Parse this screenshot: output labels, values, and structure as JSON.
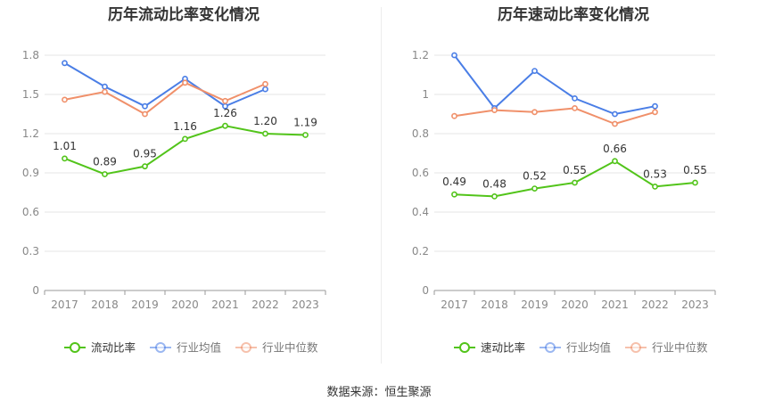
{
  "source_label": "数据来源：恒生聚源",
  "colors": {
    "company": "#52c41a",
    "avg": "#4a7ee6",
    "median": "#f0906a",
    "grid": "#e6e6e6",
    "axis": "#999999",
    "tick": "#888888"
  },
  "chart_data": [
    {
      "type": "line",
      "title": "历年流动比率变化情况",
      "categories": [
        "2017",
        "2018",
        "2019",
        "2020",
        "2021",
        "2022",
        "2023"
      ],
      "yticks": [
        "0",
        "0.3",
        "0.6",
        "0.9",
        "1.2",
        "1.5",
        "1.8"
      ],
      "ylim": [
        0,
        1.95
      ],
      "series": [
        {
          "name": "流动比率",
          "key": "company",
          "values": [
            1.01,
            0.89,
            0.95,
            1.16,
            1.26,
            1.2,
            1.19
          ],
          "labels": [
            "1.01",
            "0.89",
            "0.95",
            "1.16",
            "1.26",
            "1.20",
            "1.19"
          ]
        },
        {
          "name": "行业均值",
          "key": "avg",
          "values": [
            1.74,
            1.56,
            1.41,
            1.62,
            1.41,
            1.54,
            null
          ]
        },
        {
          "name": "行业中位数",
          "key": "median",
          "values": [
            1.46,
            1.52,
            1.35,
            1.59,
            1.45,
            1.58,
            null
          ]
        }
      ]
    },
    {
      "type": "line",
      "title": "历年速动比率变化情况",
      "categories": [
        "2017",
        "2018",
        "2019",
        "2020",
        "2021",
        "2022",
        "2023"
      ],
      "yticks": [
        "0",
        "0.2",
        "0.4",
        "0.6",
        "0.8",
        "1",
        "1.2"
      ],
      "ylim": [
        0,
        1.3
      ],
      "series": [
        {
          "name": "速动比率",
          "key": "company",
          "values": [
            0.49,
            0.48,
            0.52,
            0.55,
            0.66,
            0.53,
            0.55
          ],
          "labels": [
            "0.49",
            "0.48",
            "0.52",
            "0.55",
            "0.66",
            "0.53",
            "0.55"
          ]
        },
        {
          "name": "行业均值",
          "key": "avg",
          "values": [
            1.2,
            0.93,
            1.12,
            0.98,
            0.9,
            0.94,
            null
          ]
        },
        {
          "name": "行业中位数",
          "key": "median",
          "values": [
            0.89,
            0.92,
            0.91,
            0.93,
            0.85,
            0.91,
            null
          ]
        }
      ]
    }
  ]
}
